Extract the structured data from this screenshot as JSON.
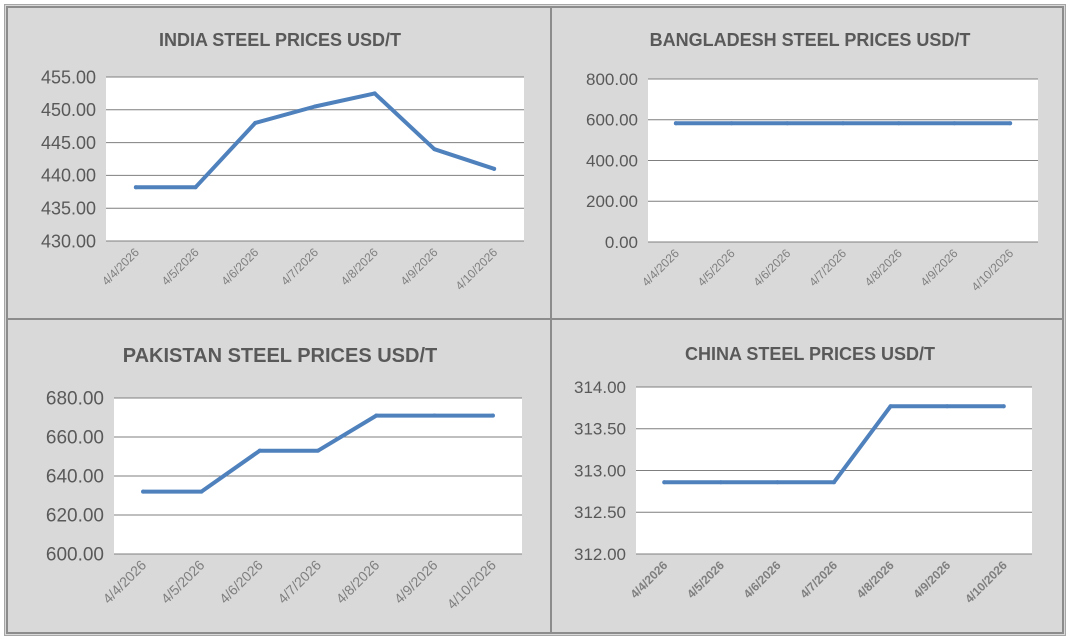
{
  "colors": {
    "line": "#4f81bd",
    "grid": "#7f7f7f",
    "plot_bg": "#ffffff",
    "panel_bg": "#d9d9d9",
    "text": "#595959"
  },
  "chart_data": [
    {
      "id": "india",
      "type": "line",
      "title": "INDIA STEEL PRICES USD/T",
      "categories": [
        "4/4/2026",
        "4/5/2026",
        "4/6/2026",
        "4/7/2026",
        "4/8/2026",
        "4/9/2026",
        "4/10/2026"
      ],
      "values": [
        438.2,
        438.2,
        448.0,
        450.5,
        452.5,
        444.0,
        441.0
      ],
      "ylim": [
        430,
        455
      ],
      "yticks": [
        "455.00",
        "450.00",
        "445.00",
        "440.00",
        "435.00",
        "430.00"
      ],
      "xlabel": "",
      "ylabel": ""
    },
    {
      "id": "bangladesh",
      "type": "line",
      "title": "BANGLADESH STEEL PRICES USD/T",
      "categories": [
        "4/4/2026",
        "4/5/2026",
        "4/6/2026",
        "4/7/2026",
        "4/8/2026",
        "4/9/2026",
        "4/10/2026"
      ],
      "values": [
        583,
        583,
        583,
        583,
        583,
        583,
        583
      ],
      "ylim": [
        0,
        800
      ],
      "yticks": [
        "800.00",
        "600.00",
        "400.00",
        "200.00",
        "0.00"
      ],
      "xlabel": "",
      "ylabel": ""
    },
    {
      "id": "pakistan",
      "type": "line",
      "title": "PAKISTAN STEEL PRICES USD/T",
      "categories": [
        "4/4/2026",
        "4/5/2026",
        "4/6/2026",
        "4/7/2026",
        "4/8/2026",
        "4/9/2026",
        "4/10/2026"
      ],
      "values": [
        632,
        632,
        653,
        653,
        671,
        671,
        671
      ],
      "ylim": [
        600,
        680
      ],
      "yticks": [
        "680.00",
        "660.00",
        "640.00",
        "620.00",
        "600.00"
      ],
      "xlabel": "",
      "ylabel": ""
    },
    {
      "id": "china",
      "type": "line",
      "title": "CHINA STEEL PRICES USD/T",
      "categories": [
        "4/4/2026",
        "4/5/2026",
        "4/6/2026",
        "4/7/2026",
        "4/8/2026",
        "4/9/2026",
        "4/10/2026"
      ],
      "values": [
        312.86,
        312.86,
        312.86,
        312.86,
        313.77,
        313.77,
        313.77
      ],
      "ylim": [
        312,
        314
      ],
      "yticks": [
        "314.00",
        "313.50",
        "313.00",
        "312.50",
        "312.00"
      ],
      "xlabel": "",
      "ylabel": ""
    }
  ]
}
